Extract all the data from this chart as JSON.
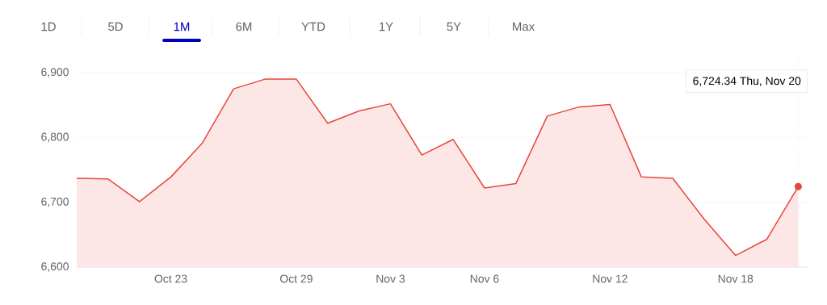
{
  "chart_data": {
    "type": "area",
    "color": "#e8453c",
    "categories": [
      null,
      null,
      null,
      "Oct 23",
      null,
      null,
      null,
      "Oct 29",
      null,
      null,
      "Nov 3",
      null,
      null,
      "Nov 6",
      null,
      null,
      null,
      "Nov 12",
      null,
      null,
      null,
      "Nov 18",
      null,
      null
    ],
    "values": [
      6737,
      6736,
      6701,
      6739,
      6791,
      6875,
      6890,
      6890,
      6822,
      6841,
      6852,
      6773,
      6797,
      6722,
      6729,
      6833,
      6847,
      6851,
      6739,
      6737,
      6674,
      6618,
      6643,
      6724.34
    ],
    "ylim": [
      6600,
      6925
    ],
    "yticks": [
      {
        "value": 6600,
        "label": "6,600"
      },
      {
        "value": 6700,
        "label": "6,700"
      },
      {
        "value": 6800,
        "label": "6,800"
      },
      {
        "value": 6900,
        "label": "6,900"
      }
    ],
    "grid": "y",
    "annotations": [
      "1D",
      "5D",
      "1M",
      "6M",
      "YTD",
      "1Y",
      "5Y",
      "Max",
      "6,724.34  Thu, Nov 20"
    ]
  }
}
